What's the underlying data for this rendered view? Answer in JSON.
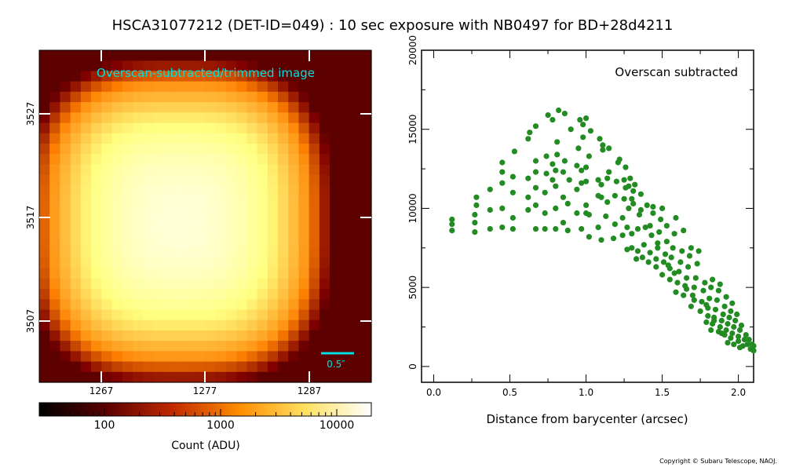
{
  "title": "HSCA31077212 (DET-ID=049) :  10 sec exposure with NB0497 for BD+28d4211",
  "copyright": "Copyright © Subaru Telescope, NAOJ.",
  "colors": {
    "scatter": "#228B22",
    "annotation": "#00e0e0"
  },
  "image_panel": {
    "label": "Overscan-subtracted/trimmed image",
    "x_ticks": [
      "1267",
      "1277",
      "1287"
    ],
    "y_ticks": [
      "3527",
      "3517",
      "3507"
    ],
    "scalebar_label": "0.5″",
    "colorbar_ticks": [
      "100",
      "1000",
      "10000"
    ],
    "colorbar_label": "Count (ADU)"
  },
  "chart_data": {
    "type": "scatter",
    "annotation": "Overscan subtracted",
    "xlabel": "Distance from barycenter (arcsec)",
    "ylabel": "",
    "xlim": [
      -0.08,
      2.1
    ],
    "ylim": [
      -1000,
      20000
    ],
    "x_ticks": [
      "0.0",
      "0.5",
      "1.0",
      "1.5",
      "2.0"
    ],
    "y_ticks": [
      "0",
      "5000",
      "10000",
      "15000",
      "20000"
    ],
    "grid": false,
    "series": [
      {
        "points": [
          [
            0.12,
            8600
          ],
          [
            0.12,
            9000
          ],
          [
            0.12,
            9300
          ],
          [
            0.27,
            8500
          ],
          [
            0.27,
            9100
          ],
          [
            0.27,
            9600
          ],
          [
            0.28,
            10200
          ],
          [
            0.28,
            10700
          ],
          [
            0.37,
            8700
          ],
          [
            0.37,
            9900
          ],
          [
            0.37,
            11200
          ],
          [
            0.45,
            8800
          ],
          [
            0.45,
            10000
          ],
          [
            0.45,
            11600
          ],
          [
            0.45,
            12300
          ],
          [
            0.45,
            12900
          ],
          [
            0.52,
            8700
          ],
          [
            0.52,
            9400
          ],
          [
            0.52,
            11000
          ],
          [
            0.52,
            12000
          ],
          [
            0.53,
            13600
          ],
          [
            0.62,
            9900
          ],
          [
            0.62,
            10700
          ],
          [
            0.62,
            11900
          ],
          [
            0.62,
            14400
          ],
          [
            0.63,
            14800
          ],
          [
            0.67,
            8700
          ],
          [
            0.67,
            10200
          ],
          [
            0.67,
            11300
          ],
          [
            0.67,
            12300
          ],
          [
            0.67,
            13000
          ],
          [
            0.67,
            15200
          ],
          [
            0.73,
            8700
          ],
          [
            0.73,
            9700
          ],
          [
            0.73,
            11000
          ],
          [
            0.74,
            12200
          ],
          [
            0.74,
            13300
          ],
          [
            0.75,
            15900
          ],
          [
            0.78,
            11800
          ],
          [
            0.78,
            12800
          ],
          [
            0.78,
            15600
          ],
          [
            0.8,
            8700
          ],
          [
            0.8,
            10000
          ],
          [
            0.8,
            11400
          ],
          [
            0.8,
            12400
          ],
          [
            0.81,
            13400
          ],
          [
            0.81,
            14200
          ],
          [
            0.82,
            16200
          ],
          [
            0.85,
            9100
          ],
          [
            0.85,
            10700
          ],
          [
            0.85,
            12300
          ],
          [
            0.86,
            13000
          ],
          [
            0.86,
            16000
          ],
          [
            0.88,
            8600
          ],
          [
            0.88,
            10300
          ],
          [
            0.89,
            11800
          ],
          [
            0.9,
            15000
          ],
          [
            0.94,
            9700
          ],
          [
            0.94,
            11200
          ],
          [
            0.94,
            12700
          ],
          [
            0.95,
            13800
          ],
          [
            0.96,
            15600
          ],
          [
            0.97,
            8700
          ],
          [
            0.97,
            11600
          ],
          [
            0.97,
            12400
          ],
          [
            0.98,
            14500
          ],
          [
            0.98,
            15300
          ],
          [
            1.0,
            9700
          ],
          [
            1.0,
            10200
          ],
          [
            1.0,
            11700
          ],
          [
            1.0,
            12600
          ],
          [
            1.0,
            15700
          ],
          [
            1.02,
            8200
          ],
          [
            1.02,
            9600
          ],
          [
            1.02,
            13300
          ],
          [
            1.03,
            14900
          ],
          [
            1.08,
            8800
          ],
          [
            1.08,
            10800
          ],
          [
            1.08,
            11800
          ],
          [
            1.09,
            14400
          ],
          [
            1.1,
            8000
          ],
          [
            1.1,
            10700
          ],
          [
            1.1,
            11500
          ],
          [
            1.11,
            13700
          ],
          [
            1.11,
            14000
          ],
          [
            1.13,
            9500
          ],
          [
            1.14,
            10400
          ],
          [
            1.14,
            11900
          ],
          [
            1.15,
            12300
          ],
          [
            1.15,
            13800
          ],
          [
            1.18,
            8100
          ],
          [
            1.19,
            9000
          ],
          [
            1.19,
            10800
          ],
          [
            1.2,
            11700
          ],
          [
            1.21,
            12900
          ],
          [
            1.22,
            13100
          ],
          [
            1.24,
            8300
          ],
          [
            1.24,
            9400
          ],
          [
            1.25,
            10600
          ],
          [
            1.25,
            11800
          ],
          [
            1.26,
            12600
          ],
          [
            1.27,
            7400
          ],
          [
            1.27,
            8800
          ],
          [
            1.28,
            10000
          ],
          [
            1.28,
            11400
          ],
          [
            1.29,
            11900
          ],
          [
            1.3,
            7500
          ],
          [
            1.3,
            8400
          ],
          [
            1.31,
            10300
          ],
          [
            1.31,
            11100
          ],
          [
            1.32,
            11500
          ],
          [
            1.33,
            6800
          ],
          [
            1.34,
            7300
          ],
          [
            1.34,
            8700
          ],
          [
            1.35,
            9600
          ],
          [
            1.36,
            10900
          ],
          [
            1.37,
            6900
          ],
          [
            1.38,
            7700
          ],
          [
            1.39,
            8800
          ],
          [
            1.4,
            10200
          ],
          [
            1.41,
            6600
          ],
          [
            1.42,
            7200
          ],
          [
            1.43,
            8300
          ],
          [
            1.44,
            9700
          ],
          [
            1.44,
            10100
          ],
          [
            1.46,
            6300
          ],
          [
            1.46,
            6800
          ],
          [
            1.47,
            7500
          ],
          [
            1.48,
            8500
          ],
          [
            1.49,
            9300
          ],
          [
            1.5,
            10000
          ],
          [
            1.5,
            5800
          ],
          [
            1.51,
            6600
          ],
          [
            1.52,
            7100
          ],
          [
            1.53,
            7900
          ],
          [
            1.53,
            8900
          ],
          [
            1.55,
            5500
          ],
          [
            1.55,
            6200
          ],
          [
            1.56,
            6900
          ],
          [
            1.57,
            7500
          ],
          [
            1.58,
            8400
          ],
          [
            1.59,
            9400
          ],
          [
            1.59,
            4700
          ],
          [
            1.6,
            5300
          ],
          [
            1.61,
            6000
          ],
          [
            1.62,
            6600
          ],
          [
            1.63,
            7300
          ],
          [
            1.64,
            8600
          ],
          [
            1.64,
            4500
          ],
          [
            1.65,
            5100
          ],
          [
            1.66,
            5600
          ],
          [
            1.67,
            6300
          ],
          [
            1.68,
            7000
          ],
          [
            1.69,
            7500
          ],
          [
            1.69,
            3800
          ],
          [
            1.7,
            4500
          ],
          [
            1.71,
            5000
          ],
          [
            1.72,
            5600
          ],
          [
            1.73,
            6500
          ],
          [
            1.74,
            7300
          ],
          [
            1.75,
            3500
          ],
          [
            1.76,
            4100
          ],
          [
            1.77,
            4800
          ],
          [
            1.78,
            5300
          ],
          [
            1.79,
            2800
          ],
          [
            1.8,
            3200
          ],
          [
            1.8,
            3700
          ],
          [
            1.81,
            4300
          ],
          [
            1.82,
            5000
          ],
          [
            1.83,
            5500
          ],
          [
            1.82,
            2300
          ],
          [
            1.83,
            2700
          ],
          [
            1.84,
            3100
          ],
          [
            1.85,
            3600
          ],
          [
            1.86,
            4200
          ],
          [
            1.87,
            4800
          ],
          [
            1.88,
            5200
          ],
          [
            1.87,
            2200
          ],
          [
            1.88,
            2500
          ],
          [
            1.89,
            2900
          ],
          [
            1.9,
            3300
          ],
          [
            1.91,
            3800
          ],
          [
            1.92,
            4400
          ],
          [
            1.91,
            2000
          ],
          [
            1.92,
            2300
          ],
          [
            1.93,
            2700
          ],
          [
            1.94,
            3100
          ],
          [
            1.95,
            3500
          ],
          [
            1.96,
            4000
          ],
          [
            1.95,
            1800
          ],
          [
            1.96,
            2100
          ],
          [
            1.97,
            2500
          ],
          [
            1.98,
            2900
          ],
          [
            1.99,
            3300
          ],
          [
            2.0,
            1600
          ],
          [
            2.0,
            1900
          ],
          [
            2.01,
            2300
          ],
          [
            2.02,
            2600
          ],
          [
            2.03,
            1300
          ],
          [
            2.04,
            1700
          ],
          [
            2.05,
            2000
          ],
          [
            2.06,
            1400
          ],
          [
            2.07,
            1700
          ],
          [
            2.08,
            1100
          ],
          [
            2.09,
            1400
          ],
          [
            2.1,
            1000
          ],
          [
            2.1,
            1300
          ],
          [
            1.93,
            1500
          ],
          [
            1.97,
            1400
          ],
          [
            2.01,
            1200
          ],
          [
            1.84,
            2900
          ],
          [
            1.89,
            2100
          ],
          [
            1.79,
            3900
          ],
          [
            1.71,
            4200
          ],
          [
            1.66,
            4900
          ],
          [
            1.58,
            5900
          ],
          [
            1.54,
            6400
          ],
          [
            1.47,
            7800
          ],
          [
            1.42,
            8900
          ],
          [
            1.36,
            9900
          ],
          [
            1.3,
            10600
          ],
          [
            1.26,
            11300
          ]
        ]
      }
    ]
  }
}
